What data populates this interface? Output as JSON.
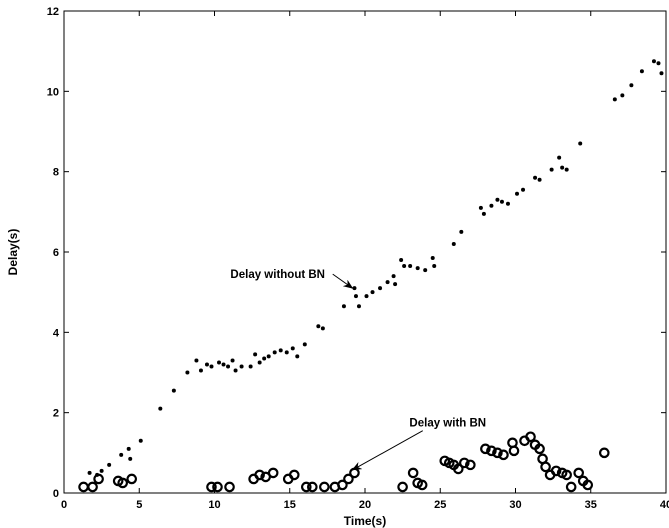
{
  "chart_data": {
    "type": "scatter",
    "xlabel": "Time(s)",
    "ylabel": "Delay(s)",
    "xlim": [
      0,
      40
    ],
    "ylim": [
      0,
      12
    ],
    "xticks": [
      0,
      5,
      10,
      15,
      20,
      25,
      30,
      35,
      40
    ],
    "yticks": [
      0,
      2,
      4,
      6,
      8,
      10,
      12
    ],
    "grid": false,
    "series": [
      {
        "marker": "dot",
        "color": "#000000",
        "points": [
          [
            1.7,
            0.5
          ],
          [
            2.2,
            0.45
          ],
          [
            2.5,
            0.55
          ],
          [
            3.0,
            0.7
          ],
          [
            3.8,
            0.95
          ],
          [
            4.3,
            1.1
          ],
          [
            4.4,
            0.85
          ],
          [
            5.1,
            1.3
          ],
          [
            6.4,
            2.1
          ],
          [
            7.3,
            2.55
          ],
          [
            8.2,
            3.0
          ],
          [
            8.8,
            3.3
          ],
          [
            9.1,
            3.05
          ],
          [
            9.5,
            3.2
          ],
          [
            9.8,
            3.15
          ],
          [
            10.3,
            3.25
          ],
          [
            10.6,
            3.2
          ],
          [
            10.9,
            3.15
          ],
          [
            11.2,
            3.3
          ],
          [
            11.4,
            3.05
          ],
          [
            11.8,
            3.15
          ],
          [
            12.4,
            3.15
          ],
          [
            12.7,
            3.45
          ],
          [
            13.0,
            3.25
          ],
          [
            13.3,
            3.35
          ],
          [
            13.6,
            3.4
          ],
          [
            14.0,
            3.5
          ],
          [
            14.4,
            3.55
          ],
          [
            14.8,
            3.5
          ],
          [
            15.2,
            3.6
          ],
          [
            15.5,
            3.4
          ],
          [
            16.0,
            3.7
          ],
          [
            16.9,
            4.15
          ],
          [
            17.2,
            4.1
          ],
          [
            18.6,
            4.65
          ],
          [
            19.3,
            5.1
          ],
          [
            19.4,
            4.9
          ],
          [
            19.6,
            4.65
          ],
          [
            20.1,
            4.9
          ],
          [
            20.5,
            5.0
          ],
          [
            21.0,
            5.1
          ],
          [
            21.5,
            5.25
          ],
          [
            21.9,
            5.4
          ],
          [
            22.0,
            5.2
          ],
          [
            22.4,
            5.8
          ],
          [
            22.6,
            5.65
          ],
          [
            23.0,
            5.65
          ],
          [
            23.5,
            5.6
          ],
          [
            24.0,
            5.55
          ],
          [
            24.5,
            5.85
          ],
          [
            24.6,
            5.65
          ],
          [
            25.9,
            6.2
          ],
          [
            26.4,
            6.5
          ],
          [
            27.7,
            7.1
          ],
          [
            27.9,
            6.95
          ],
          [
            28.4,
            7.15
          ],
          [
            28.8,
            7.3
          ],
          [
            29.1,
            7.25
          ],
          [
            29.5,
            7.2
          ],
          [
            30.1,
            7.45
          ],
          [
            30.5,
            7.55
          ],
          [
            31.3,
            7.85
          ],
          [
            31.6,
            7.8
          ],
          [
            32.4,
            8.05
          ],
          [
            32.9,
            8.35
          ],
          [
            33.1,
            8.1
          ],
          [
            33.4,
            8.05
          ],
          [
            34.3,
            8.7
          ],
          [
            36.6,
            9.8
          ],
          [
            37.1,
            9.9
          ],
          [
            37.7,
            10.15
          ],
          [
            38.4,
            10.5
          ],
          [
            39.2,
            10.75
          ],
          [
            39.5,
            10.7
          ],
          [
            39.7,
            10.45
          ]
        ]
      },
      {
        "marker": "circle",
        "color": "#000000",
        "points": [
          [
            1.3,
            0.15
          ],
          [
            1.9,
            0.15
          ],
          [
            2.3,
            0.35
          ],
          [
            3.6,
            0.3
          ],
          [
            3.9,
            0.25
          ],
          [
            4.5,
            0.35
          ],
          [
            9.8,
            0.15
          ],
          [
            10.2,
            0.15
          ],
          [
            11.0,
            0.15
          ],
          [
            12.6,
            0.35
          ],
          [
            13.0,
            0.45
          ],
          [
            13.4,
            0.4
          ],
          [
            13.9,
            0.5
          ],
          [
            14.9,
            0.35
          ],
          [
            15.3,
            0.45
          ],
          [
            16.1,
            0.15
          ],
          [
            16.5,
            0.15
          ],
          [
            17.3,
            0.15
          ],
          [
            18.0,
            0.15
          ],
          [
            18.5,
            0.2
          ],
          [
            18.9,
            0.35
          ],
          [
            19.3,
            0.5
          ],
          [
            22.5,
            0.15
          ],
          [
            23.2,
            0.5
          ],
          [
            23.5,
            0.25
          ],
          [
            23.8,
            0.2
          ],
          [
            25.3,
            0.8
          ],
          [
            25.6,
            0.75
          ],
          [
            25.9,
            0.7
          ],
          [
            26.2,
            0.6
          ],
          [
            26.6,
            0.75
          ],
          [
            27.0,
            0.7
          ],
          [
            28.0,
            1.1
          ],
          [
            28.4,
            1.05
          ],
          [
            28.8,
            1.0
          ],
          [
            29.2,
            0.95
          ],
          [
            29.8,
            1.25
          ],
          [
            29.9,
            1.05
          ],
          [
            30.6,
            1.3
          ],
          [
            31.0,
            1.4
          ],
          [
            31.3,
            1.2
          ],
          [
            31.6,
            1.1
          ],
          [
            31.8,
            0.85
          ],
          [
            32.0,
            0.65
          ],
          [
            32.3,
            0.45
          ],
          [
            32.7,
            0.55
          ],
          [
            33.1,
            0.5
          ],
          [
            33.4,
            0.45
          ],
          [
            33.7,
            0.15
          ],
          [
            34.2,
            0.5
          ],
          [
            34.5,
            0.3
          ],
          [
            34.8,
            0.2
          ],
          [
            35.9,
            1.0
          ]
        ]
      }
    ],
    "annotations": [
      {
        "text": "Delay without BN",
        "point": [
          19.3,
          5.1
        ],
        "text_at": [
          14.2,
          5.35
        ]
      },
      {
        "text": "Delay with BN",
        "point": [
          19.3,
          0.5
        ],
        "text_at": [
          25.5,
          1.65
        ]
      }
    ]
  }
}
